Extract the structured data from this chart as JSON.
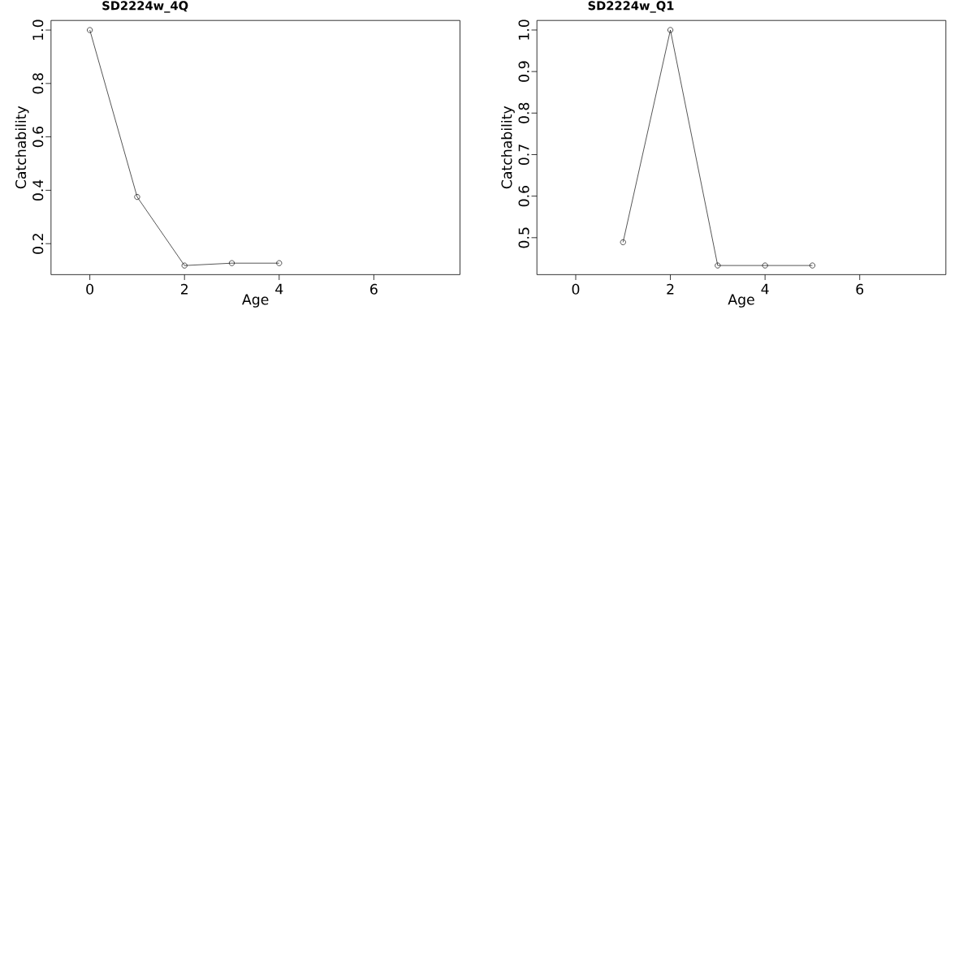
{
  "chart_data": [
    {
      "type": "line",
      "title": "SD2224w_4Q",
      "xlabel": "Age",
      "ylabel": "Catchability",
      "x": [
        0,
        1,
        2,
        3,
        4
      ],
      "values": [
        1.0,
        0.375,
        0.118,
        0.127,
        0.127
      ],
      "color": "#000000",
      "marker": "circle",
      "xlim": [
        -0.82,
        7.82
      ],
      "ylim": [
        0.084,
        1.036
      ],
      "xticks": [
        0,
        2,
        4,
        6
      ],
      "yticks": [
        0.2,
        0.4,
        0.6,
        0.8,
        {
          "value": 1.0,
          "label": "1.0"
        }
      ]
    },
    {
      "type": "line",
      "title": "SD2224w_Q1",
      "xlabel": "Age",
      "ylabel": "Catchability",
      "x": [
        1,
        2,
        3,
        4,
        5
      ],
      "values": [
        0.489,
        1.0,
        0.433,
        0.433,
        0.433
      ],
      "color": "#000000",
      "marker": "circle",
      "xlim": [
        -0.82,
        7.82
      ],
      "ylim": [
        0.411,
        1.023
      ],
      "xticks": [
        0,
        2,
        4,
        6
      ],
      "yticks": [
        0.5,
        0.6,
        0.7,
        0.8,
        0.9,
        {
          "value": 1.0,
          "label": "1.0"
        }
      ]
    }
  ]
}
